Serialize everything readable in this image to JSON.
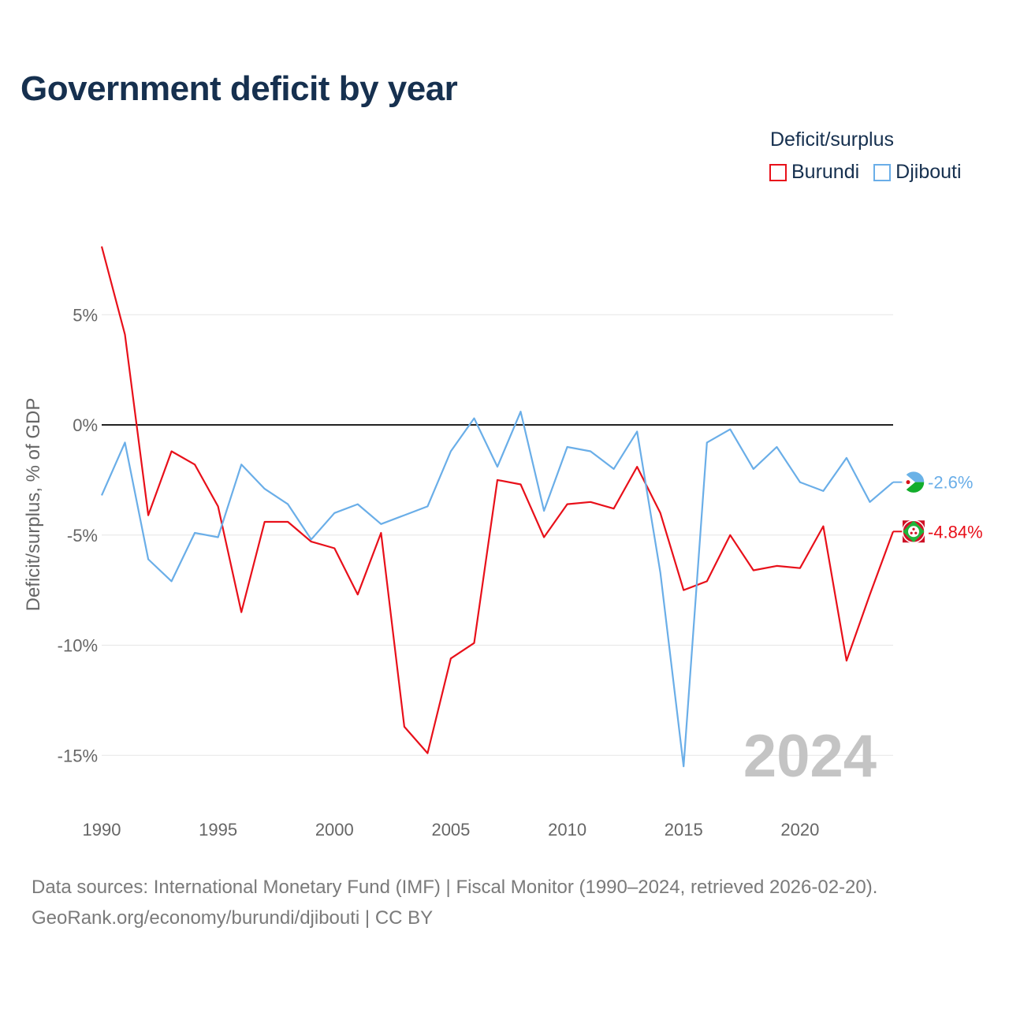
{
  "title": "Government deficit by year",
  "legend": {
    "title": "Deficit/surplus",
    "items": [
      {
        "label": "Burundi",
        "color": "#e8101a"
      },
      {
        "label": "Djibouti",
        "color": "#6aaee8"
      }
    ]
  },
  "sources": {
    "line1": "Data sources: International Monetary Fund (IMF) | Fiscal Monitor (1990–2024, retrieved 2026-02-20).",
    "line2": "GeoRank.org/economy/burundi/djibouti | CC BY"
  },
  "chart_data": {
    "type": "line",
    "title": "Government deficit by year",
    "xlabel": "",
    "ylabel": "Deficit/surplus, % of GDP",
    "x": [
      1990,
      1991,
      1992,
      1993,
      1994,
      1995,
      1996,
      1997,
      1998,
      1999,
      2000,
      2001,
      2002,
      2003,
      2004,
      2005,
      2006,
      2007,
      2008,
      2009,
      2010,
      2011,
      2012,
      2013,
      2014,
      2015,
      2016,
      2017,
      2018,
      2019,
      2020,
      2021,
      2022,
      2023,
      2024
    ],
    "xlim": [
      1990,
      2024
    ],
    "ylim": [
      -17.5,
      9
    ],
    "xticks": [
      1990,
      1995,
      2000,
      2005,
      2010,
      2015,
      2020
    ],
    "xtick_labels": [
      "1990",
      "1995",
      "2000",
      "2005",
      "2010",
      "2015",
      "2020"
    ],
    "yticks": [
      5,
      0,
      -5,
      -10,
      -15
    ],
    "ytick_labels": [
      "5%",
      "0%",
      "-5%",
      "-10%",
      "-15%"
    ],
    "zero_line": true,
    "year_watermark": "2024",
    "series": [
      {
        "name": "Burundi",
        "color": "#e8101a",
        "values": [
          8.1,
          4.1,
          -4.1,
          -1.2,
          -1.8,
          -3.7,
          -8.5,
          -4.4,
          -4.4,
          -5.3,
          -5.6,
          -7.7,
          -4.9,
          -13.7,
          -14.9,
          -10.6,
          -9.9,
          -2.5,
          -2.7,
          -5.1,
          -3.6,
          -3.5,
          -3.8,
          -1.9,
          -4.0,
          -7.5,
          -7.1,
          -5.0,
          -6.6,
          -6.4,
          -6.5,
          -4.6,
          -10.7,
          -7.7,
          -4.84
        ],
        "end_label": "-4.84%"
      },
      {
        "name": "Djibouti",
        "color": "#6aaee8",
        "values": [
          -3.2,
          -0.8,
          -6.1,
          -7.1,
          -4.9,
          -5.1,
          -1.8,
          -2.9,
          -3.6,
          -5.2,
          -4.0,
          -3.6,
          -4.5,
          -4.1,
          -3.7,
          -1.2,
          0.3,
          -1.9,
          0.6,
          -3.9,
          -1.0,
          -1.2,
          -2.0,
          -0.3,
          -6.7,
          -15.5,
          -0.8,
          -0.2,
          -2.0,
          -1.0,
          -2.6,
          -3.0,
          -1.5,
          -3.5,
          -2.6
        ],
        "end_label": "-2.6%"
      }
    ]
  }
}
